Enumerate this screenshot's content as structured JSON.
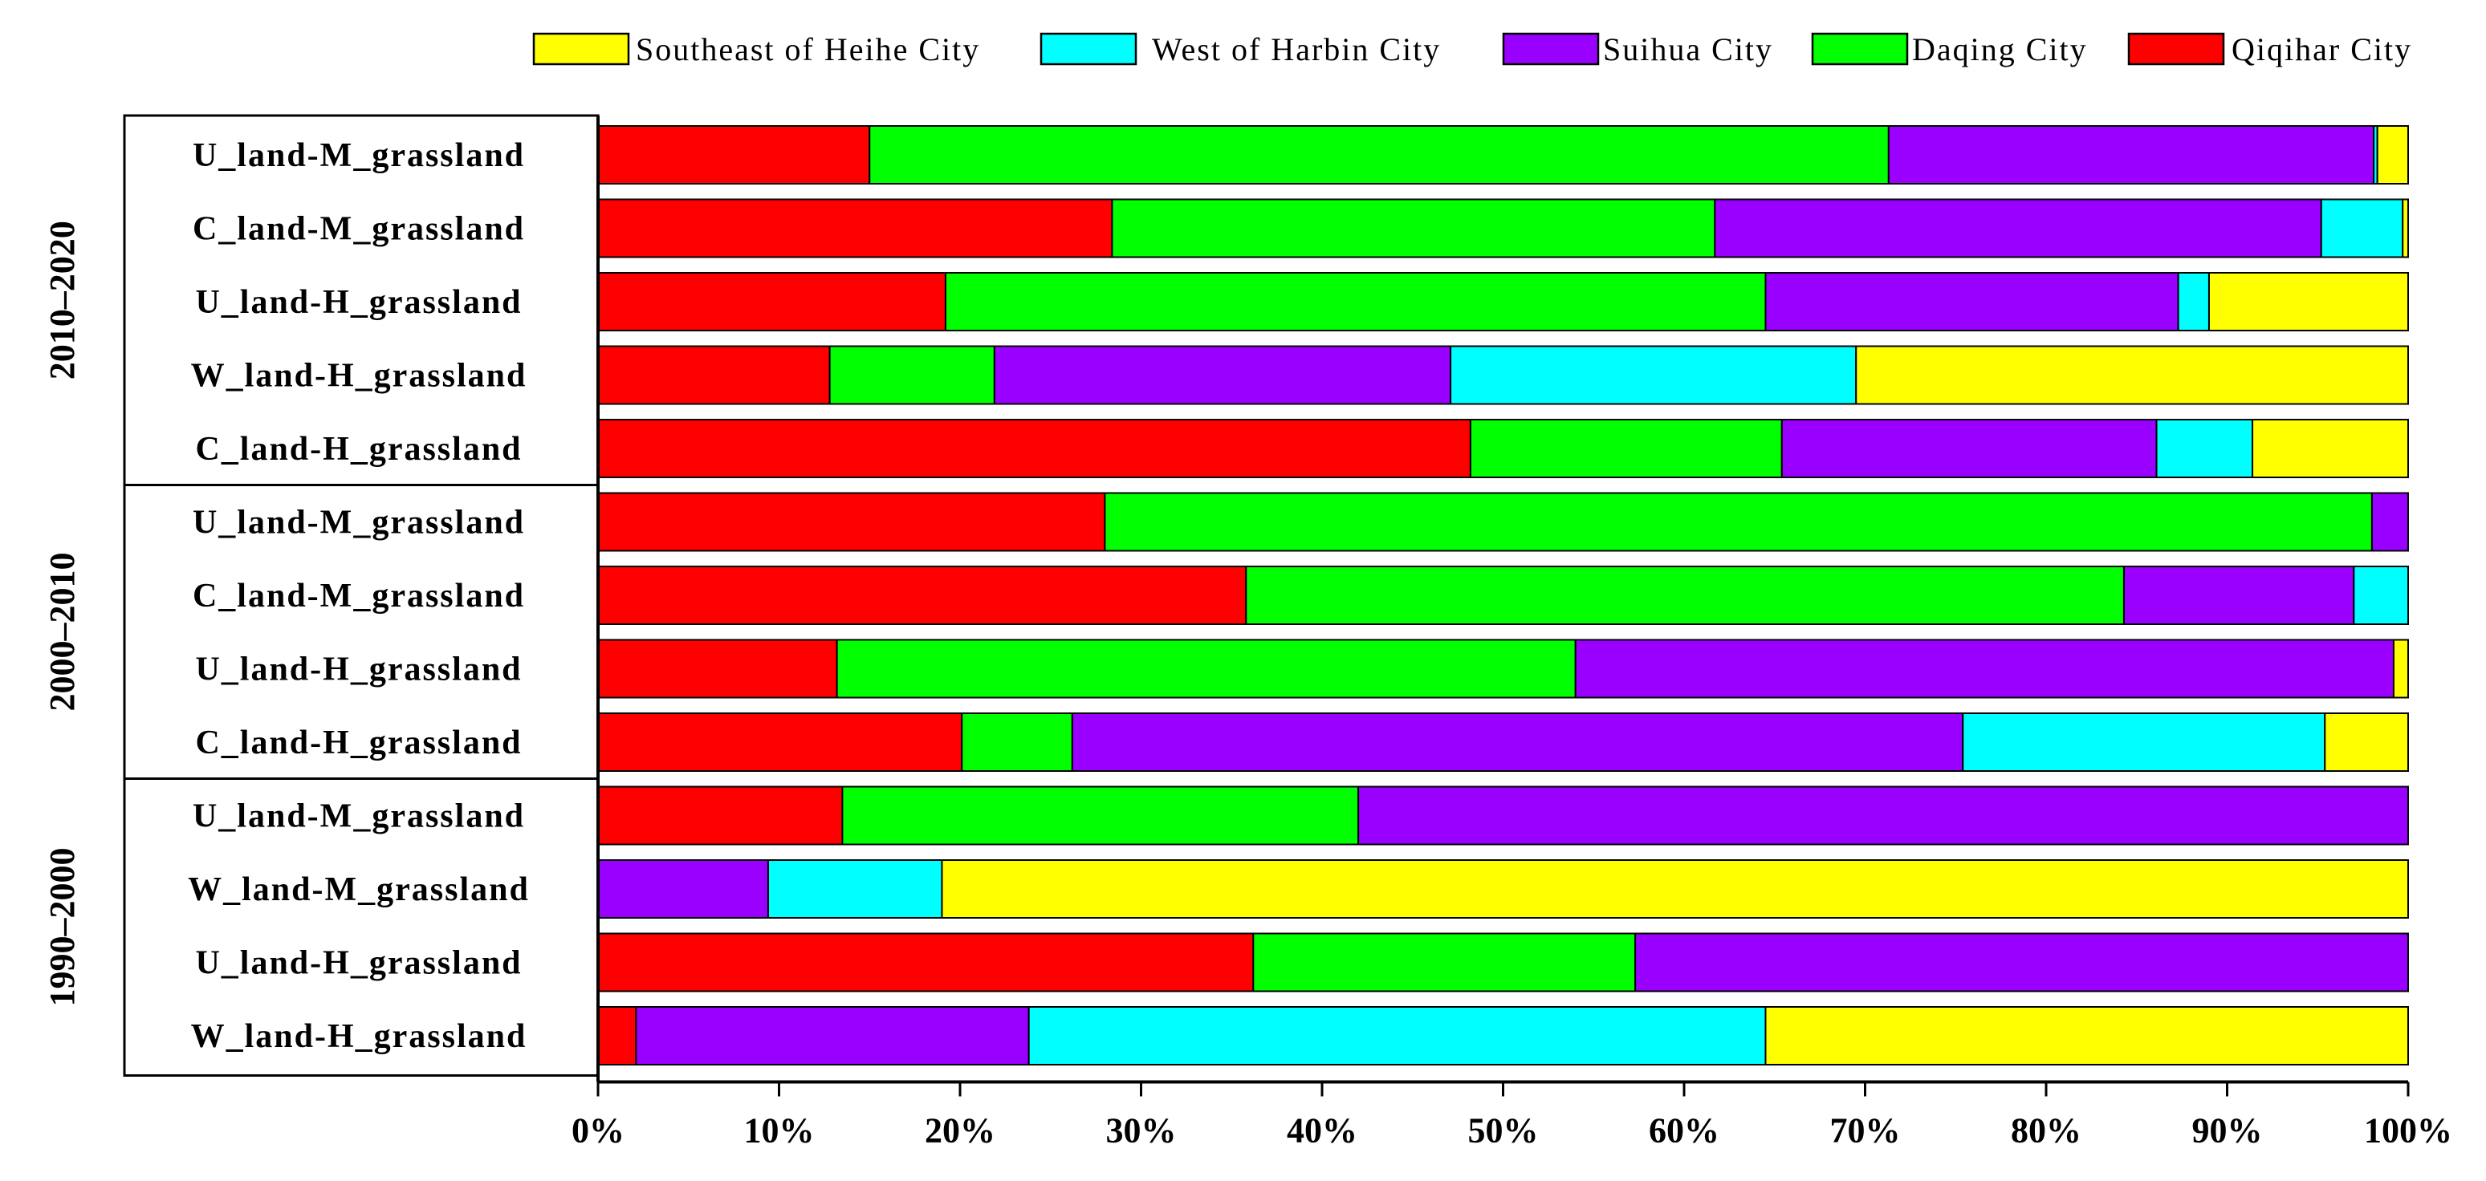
{
  "chart_data": {
    "type": "bar",
    "orientation": "horizontal",
    "stacked": "percent",
    "xlim": [
      0,
      100
    ],
    "x_ticks": [
      "0%",
      "10%",
      "20%",
      "30%",
      "40%",
      "50%",
      "60%",
      "70%",
      "80%",
      "90%",
      "100%"
    ],
    "legend_position": "top",
    "colors": {
      "Qiqihar City": "#ff0000",
      "Daqing City": "#00ff00",
      "Suihua City": "#9900ff",
      "West of Harbin City": "#00ffff",
      "Southeast of Heihe City": "#ffff00"
    },
    "legend_order": [
      "Southeast of Heihe City",
      "West of Harbin City",
      "Suihua City",
      "Daqing City",
      "Qiqihar City"
    ],
    "stack_order": [
      "Qiqihar City",
      "Daqing City",
      "Suihua City",
      "West of Harbin City",
      "Southeast of Heihe City"
    ],
    "groups": [
      {
        "label": "2010–2020",
        "rows": [
          {
            "label": "U_land-M_grassland",
            "values": [
              15.0,
              56.3,
              26.8,
              0.2,
              1.7
            ]
          },
          {
            "label": "C_land-M_grassland",
            "values": [
              28.4,
              33.3,
              33.5,
              4.5,
              0.3
            ]
          },
          {
            "label": "U_land-H_grassland",
            "values": [
              19.2,
              45.3,
              22.8,
              1.7,
              11.0
            ]
          },
          {
            "label": "W_land-H_grassland",
            "values": [
              12.8,
              9.1,
              25.2,
              22.4,
              30.5
            ]
          },
          {
            "label": "C_land-H_grassland",
            "values": [
              48.2,
              17.2,
              20.7,
              5.3,
              8.6
            ]
          }
        ]
      },
      {
        "label": "2000–2010",
        "rows": [
          {
            "label": "U_land-M_grassland",
            "values": [
              28.0,
              70.0,
              2.0,
              0.0,
              0.0
            ]
          },
          {
            "label": "C_land-M_grassland",
            "values": [
              35.8,
              48.5,
              12.7,
              3.0,
              0.0
            ]
          },
          {
            "label": "U_land-H_grassland",
            "values": [
              13.2,
              40.8,
              45.2,
              0.0,
              0.8
            ]
          },
          {
            "label": "C_land-H_grassland",
            "values": [
              20.1,
              6.1,
              49.2,
              20.0,
              4.6
            ]
          }
        ]
      },
      {
        "label": "1990–2000",
        "rows": [
          {
            "label": "U_land-M_grassland",
            "values": [
              13.5,
              28.5,
              58.0,
              0.0,
              0.0
            ]
          },
          {
            "label": "W_land-M_grassland",
            "values": [
              0.0,
              0.0,
              9.4,
              9.6,
              81.0
            ]
          },
          {
            "label": "U_land-H_grassland",
            "values": [
              36.2,
              21.1,
              42.7,
              0.0,
              0.0
            ]
          },
          {
            "label": "W_land-H_grassland",
            "values": [
              2.1,
              0.0,
              21.7,
              40.7,
              35.5
            ]
          }
        ]
      }
    ]
  }
}
